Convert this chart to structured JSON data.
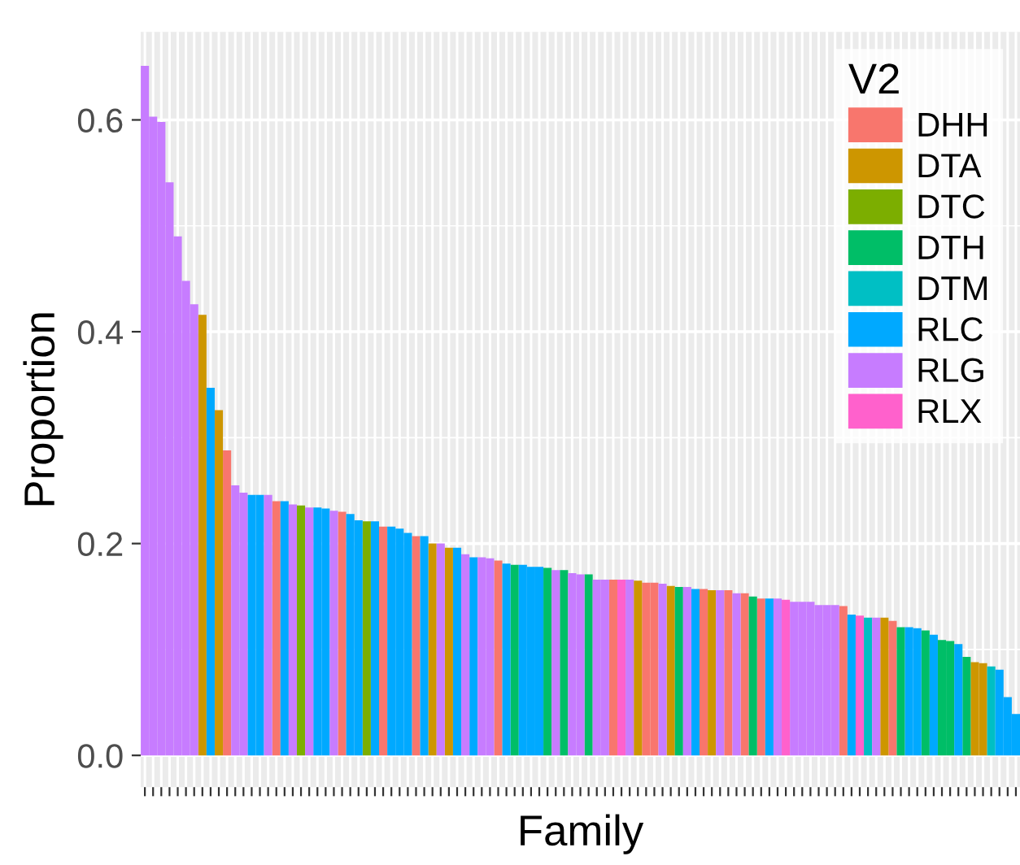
{
  "chart_data": {
    "type": "bar",
    "xlabel": "Family",
    "ylabel": "Proportion",
    "legend_title": "V2",
    "grid": true,
    "legend": "top right",
    "tick_labels": "y",
    "ylim": [
      -0.03,
      0.683
    ],
    "yticks": [
      {
        "value": 0,
        "label": "0.0"
      },
      {
        "value": 0.2,
        "label": "0.2"
      },
      {
        "value": 0.4,
        "label": "0.4"
      },
      {
        "value": 0.6,
        "label": "0.6"
      }
    ],
    "categories": [
      null,
      null,
      null,
      null,
      null,
      null,
      null,
      null,
      null,
      null,
      null,
      null,
      null,
      null,
      null,
      null,
      null,
      null,
      null,
      null,
      null,
      null,
      null,
      null,
      null,
      null,
      null,
      null,
      null,
      null,
      null,
      null,
      null,
      null,
      null,
      null,
      null,
      null,
      null,
      null,
      null,
      null,
      null,
      null,
      null,
      null,
      null,
      null,
      null,
      null,
      null,
      null,
      null,
      null,
      null,
      null,
      null,
      null,
      null,
      null,
      null,
      null,
      null,
      null,
      null,
      null,
      null,
      null,
      null,
      null,
      null,
      null,
      null,
      null,
      null,
      null,
      null,
      null,
      null,
      null,
      null,
      null,
      null,
      null,
      null,
      null,
      null,
      null,
      null,
      null,
      null,
      null,
      null,
      null,
      null,
      null,
      null,
      null,
      null,
      null,
      null,
      null,
      null,
      null,
      null,
      null,
      null
    ],
    "series": [
      {
        "name": "DHH",
        "color": "#f8766d",
        "values": [
          null,
          null,
          null,
          null,
          null,
          null,
          null,
          null,
          null,
          null,
          0.288,
          null,
          null,
          null,
          null,
          null,
          0.24,
          null,
          null,
          null,
          null,
          null,
          null,
          null,
          0.23,
          null,
          null,
          null,
          null,
          0.216,
          null,
          null,
          null,
          0.207,
          null,
          null,
          null,
          null,
          null,
          null,
          null,
          null,
          null,
          0.184,
          null,
          null,
          null,
          null,
          null,
          null,
          null,
          null,
          null,
          null,
          null,
          null,
          null,
          0.166,
          null,
          null,
          null,
          0.163,
          0.163,
          null,
          null,
          null,
          null,
          null,
          0.157,
          null,
          null,
          0.156,
          null,
          0.153,
          null,
          0.148,
          null,
          null,
          null,
          null,
          null,
          null,
          null,
          null,
          null,
          0.141,
          null,
          null,
          null,
          null,
          null,
          0.127,
          null,
          null,
          null,
          null,
          null,
          null,
          null,
          null,
          null,
          null,
          null,
          null,
          null,
          null,
          null
        ]
      },
      {
        "name": "DTA",
        "color": "#cd9600",
        "values": [
          null,
          null,
          null,
          null,
          null,
          null,
          null,
          0.416,
          null,
          0.326,
          null,
          null,
          null,
          null,
          null,
          null,
          null,
          null,
          null,
          null,
          null,
          null,
          null,
          null,
          null,
          null,
          null,
          null,
          null,
          null,
          null,
          null,
          null,
          null,
          null,
          0.2,
          null,
          0.196,
          null,
          null,
          null,
          null,
          null,
          null,
          null,
          null,
          null,
          null,
          null,
          null,
          null,
          null,
          null,
          null,
          null,
          null,
          null,
          null,
          null,
          null,
          0.165,
          null,
          null,
          null,
          0.16,
          null,
          null,
          null,
          null,
          0.156,
          null,
          null,
          null,
          null,
          null,
          null,
          null,
          null,
          null,
          null,
          null,
          null,
          null,
          null,
          null,
          null,
          null,
          null,
          null,
          null,
          0.13,
          null,
          null,
          null,
          null,
          null,
          null,
          null,
          null,
          null,
          null,
          0.088,
          0.087,
          null,
          null,
          null,
          null
        ]
      },
      {
        "name": "DTC",
        "color": "#7cae00",
        "values": [
          null,
          null,
          null,
          null,
          null,
          null,
          null,
          null,
          null,
          null,
          null,
          null,
          null,
          null,
          null,
          null,
          null,
          null,
          null,
          0.236,
          null,
          null,
          null,
          null,
          null,
          null,
          null,
          0.221,
          null,
          null,
          null,
          null,
          null,
          null,
          null,
          null,
          null,
          null,
          null,
          null,
          null,
          null,
          null,
          null,
          null,
          null,
          null,
          null,
          null,
          null,
          null,
          null,
          null,
          null,
          null,
          null,
          null,
          null,
          null,
          null,
          null,
          null,
          null,
          null,
          null,
          null,
          null,
          null,
          null,
          null,
          null,
          null,
          null,
          null,
          null,
          null,
          null,
          null,
          null,
          null,
          null,
          null,
          null,
          null,
          null,
          null,
          null,
          null,
          null,
          null,
          null,
          null,
          null,
          null,
          null,
          null,
          null,
          null,
          null,
          null,
          null,
          null,
          null,
          null,
          null,
          null,
          null
        ]
      },
      {
        "name": "DTH",
        "color": "#00be67",
        "values": [
          null,
          null,
          null,
          null,
          null,
          null,
          null,
          null,
          null,
          null,
          null,
          null,
          null,
          null,
          null,
          null,
          null,
          null,
          null,
          null,
          null,
          null,
          null,
          null,
          null,
          null,
          null,
          null,
          null,
          null,
          null,
          null,
          null,
          null,
          null,
          null,
          null,
          null,
          null,
          null,
          null,
          null,
          null,
          null,
          null,
          0.18,
          null,
          null,
          null,
          0.177,
          null,
          0.175,
          null,
          null,
          0.171,
          null,
          null,
          null,
          null,
          null,
          null,
          null,
          null,
          null,
          null,
          0.159,
          null,
          null,
          null,
          null,
          null,
          null,
          null,
          null,
          0.15,
          null,
          null,
          null,
          null,
          null,
          null,
          null,
          null,
          null,
          null,
          null,
          null,
          null,
          null,
          null,
          null,
          null,
          0.121,
          null,
          null,
          0.118,
          null,
          0.109,
          0.108,
          null,
          0.093,
          null,
          null,
          null,
          null,
          null,
          null
        ]
      },
      {
        "name": "DTM",
        "color": "#00bfc4",
        "values": [
          null,
          null,
          null,
          null,
          null,
          null,
          null,
          null,
          null,
          null,
          null,
          null,
          null,
          null,
          null,
          null,
          null,
          null,
          null,
          null,
          null,
          null,
          null,
          null,
          null,
          null,
          null,
          null,
          null,
          null,
          null,
          null,
          null,
          null,
          null,
          null,
          null,
          null,
          null,
          null,
          null,
          null,
          null,
          null,
          null,
          null,
          null,
          null,
          null,
          null,
          null,
          null,
          null,
          null,
          null,
          null,
          null,
          null,
          null,
          null,
          null,
          null,
          null,
          null,
          null,
          null,
          null,
          null,
          null,
          null,
          null,
          null,
          null,
          null,
          null,
          null,
          null,
          null,
          null,
          null,
          null,
          null,
          null,
          null,
          null,
          null,
          null,
          null,
          0.13,
          null,
          null,
          null,
          null,
          null,
          null,
          null,
          null,
          null,
          null,
          null,
          null,
          null,
          null,
          0.084,
          null,
          null,
          null
        ]
      },
      {
        "name": "RLC",
        "color": "#00a9ff",
        "values": [
          null,
          null,
          null,
          null,
          null,
          null,
          null,
          null,
          0.347,
          null,
          null,
          null,
          null,
          0.246,
          0.246,
          null,
          null,
          0.24,
          null,
          null,
          null,
          0.234,
          0.233,
          null,
          null,
          0.228,
          0.222,
          null,
          0.221,
          null,
          0.216,
          0.214,
          0.21,
          null,
          0.207,
          null,
          null,
          null,
          0.196,
          null,
          0.187,
          null,
          null,
          null,
          0.181,
          null,
          0.18,
          0.178,
          0.178,
          null,
          null,
          null,
          null,
          null,
          null,
          null,
          null,
          null,
          null,
          null,
          null,
          null,
          null,
          null,
          null,
          null,
          null,
          0.157,
          null,
          null,
          null,
          null,
          null,
          null,
          null,
          null,
          0.148,
          null,
          null,
          null,
          null,
          null,
          null,
          null,
          null,
          null,
          0.133,
          null,
          null,
          null,
          null,
          null,
          null,
          0.121,
          0.12,
          null,
          0.114,
          null,
          null,
          0.105,
          null,
          null,
          null,
          null,
          0.081,
          0.055,
          0.039
        ]
      },
      {
        "name": "RLG",
        "color": "#c77cff",
        "values": [
          0.651,
          0.603,
          0.598,
          0.541,
          0.49,
          0.448,
          0.426,
          null,
          null,
          null,
          null,
          0.255,
          0.248,
          null,
          null,
          0.246,
          null,
          null,
          0.237,
          null,
          0.234,
          null,
          null,
          0.231,
          null,
          null,
          null,
          null,
          null,
          null,
          null,
          null,
          null,
          null,
          null,
          null,
          0.2,
          null,
          null,
          0.19,
          null,
          0.187,
          0.186,
          null,
          null,
          null,
          null,
          null,
          null,
          null,
          0.175,
          null,
          0.172,
          0.171,
          null,
          0.166,
          0.166,
          null,
          null,
          0.166,
          null,
          null,
          null,
          0.162,
          null,
          null,
          0.159,
          null,
          null,
          null,
          0.156,
          null,
          0.153,
          null,
          null,
          null,
          null,
          0.148,
          null,
          0.145,
          0.145,
          0.145,
          0.142,
          0.142,
          0.142,
          null,
          null,
          null,
          null,
          0.13,
          null,
          null,
          null,
          null,
          null,
          null,
          null,
          null,
          null,
          null,
          null,
          null,
          null,
          null,
          null,
          null,
          null
        ]
      },
      {
        "name": "RLX",
        "color": "#ff61cc",
        "values": [
          null,
          null,
          null,
          null,
          null,
          null,
          null,
          null,
          null,
          null,
          null,
          null,
          null,
          null,
          null,
          null,
          null,
          null,
          null,
          null,
          null,
          null,
          null,
          null,
          null,
          null,
          null,
          null,
          null,
          null,
          null,
          null,
          null,
          null,
          null,
          null,
          null,
          null,
          null,
          null,
          null,
          null,
          null,
          null,
          null,
          null,
          null,
          null,
          null,
          null,
          null,
          null,
          null,
          null,
          null,
          null,
          null,
          null,
          0.166,
          null,
          null,
          null,
          null,
          null,
          null,
          null,
          null,
          null,
          null,
          null,
          null,
          null,
          null,
          null,
          null,
          null,
          null,
          null,
          0.147,
          null,
          null,
          null,
          null,
          null,
          null,
          null,
          null,
          0.132,
          null,
          null,
          null,
          null,
          null,
          null,
          null,
          null,
          null,
          null,
          null,
          null,
          null,
          null,
          null,
          null,
          null,
          null,
          null
        ]
      }
    ]
  }
}
